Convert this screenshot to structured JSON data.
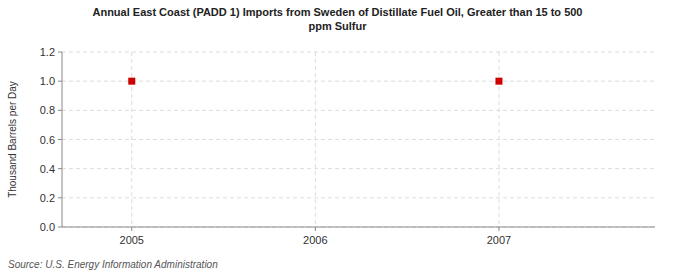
{
  "chart_data": {
    "type": "scatter",
    "title": "Annual East Coast (PADD 1) Imports from Sweden of Distillate Fuel Oil, Greater than 15 to 500\nppm Sulfur",
    "ylabel": "Thousand Barrels per Day",
    "source": "Source: U.S. Energy Information Administration",
    "x": [
      2005,
      2007
    ],
    "values": [
      1.0,
      1.0
    ],
    "color": "#cc0000",
    "marker": "square",
    "xlim": [
      2004.62,
      2007.85
    ],
    "ylim": [
      0.0,
      1.2
    ],
    "xticks": [
      2005,
      2006,
      2007
    ],
    "yticks": [
      {
        "value": 0.0,
        "label": "0.0"
      },
      0.2,
      0.4,
      0.6,
      0.8,
      {
        "value": 1.0,
        "label": "1.0"
      },
      1.2
    ],
    "grid": true
  }
}
